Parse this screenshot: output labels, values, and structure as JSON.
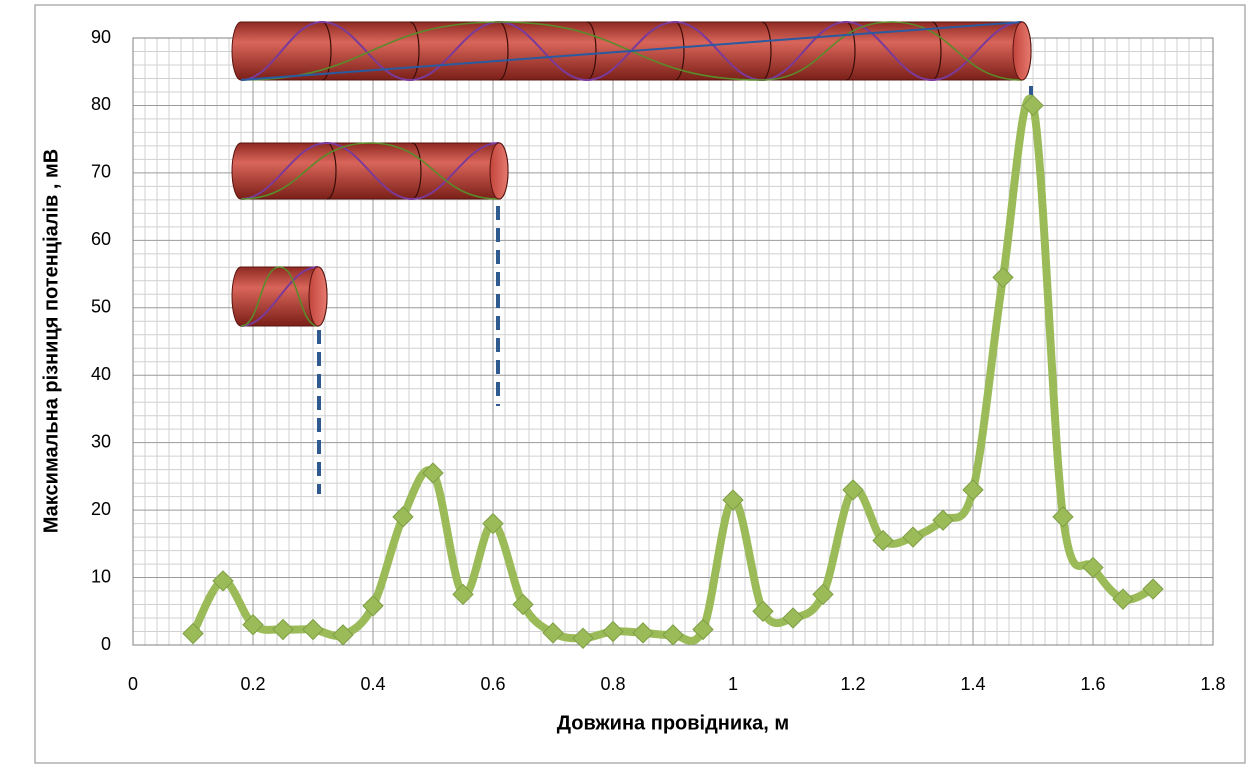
{
  "chart_data": {
    "type": "line",
    "x_label": "Довжина провідника, м",
    "y_label": "Максимальна різниця потенціалів , мВ",
    "x": [
      0.1,
      0.15,
      0.2,
      0.25,
      0.3,
      0.35,
      0.4,
      0.45,
      0.5,
      0.55,
      0.6,
      0.65,
      0.7,
      0.75,
      0.8,
      0.85,
      0.9,
      0.95,
      1.0,
      1.05,
      1.1,
      1.15,
      1.2,
      1.25,
      1.3,
      1.35,
      1.4,
      1.45,
      1.5,
      1.55,
      1.6,
      1.65,
      1.7
    ],
    "values": [
      1.7,
      9.5,
      3,
      2.3,
      2.3,
      1.5,
      5.8,
      19,
      25.5,
      7.5,
      18,
      6,
      1.8,
      1,
      2,
      1.8,
      1.5,
      2.3,
      21.5,
      5,
      4,
      7.5,
      23,
      15.5,
      16,
      18.5,
      23,
      54.5,
      80,
      19,
      11.5,
      6.8,
      8.3
    ],
    "color": "#9bbb59",
    "marker": "diamond",
    "xlim": [
      0,
      1.8
    ],
    "xticks": [
      0,
      0.2,
      0.4,
      0.6,
      0.8,
      1,
      1.2,
      1.4,
      1.6,
      1.8
    ],
    "ylim": [
      0,
      90
    ],
    "yticks": [
      0,
      10,
      20,
      30,
      40,
      50,
      60,
      70,
      80,
      90
    ],
    "grid": true
  }
}
